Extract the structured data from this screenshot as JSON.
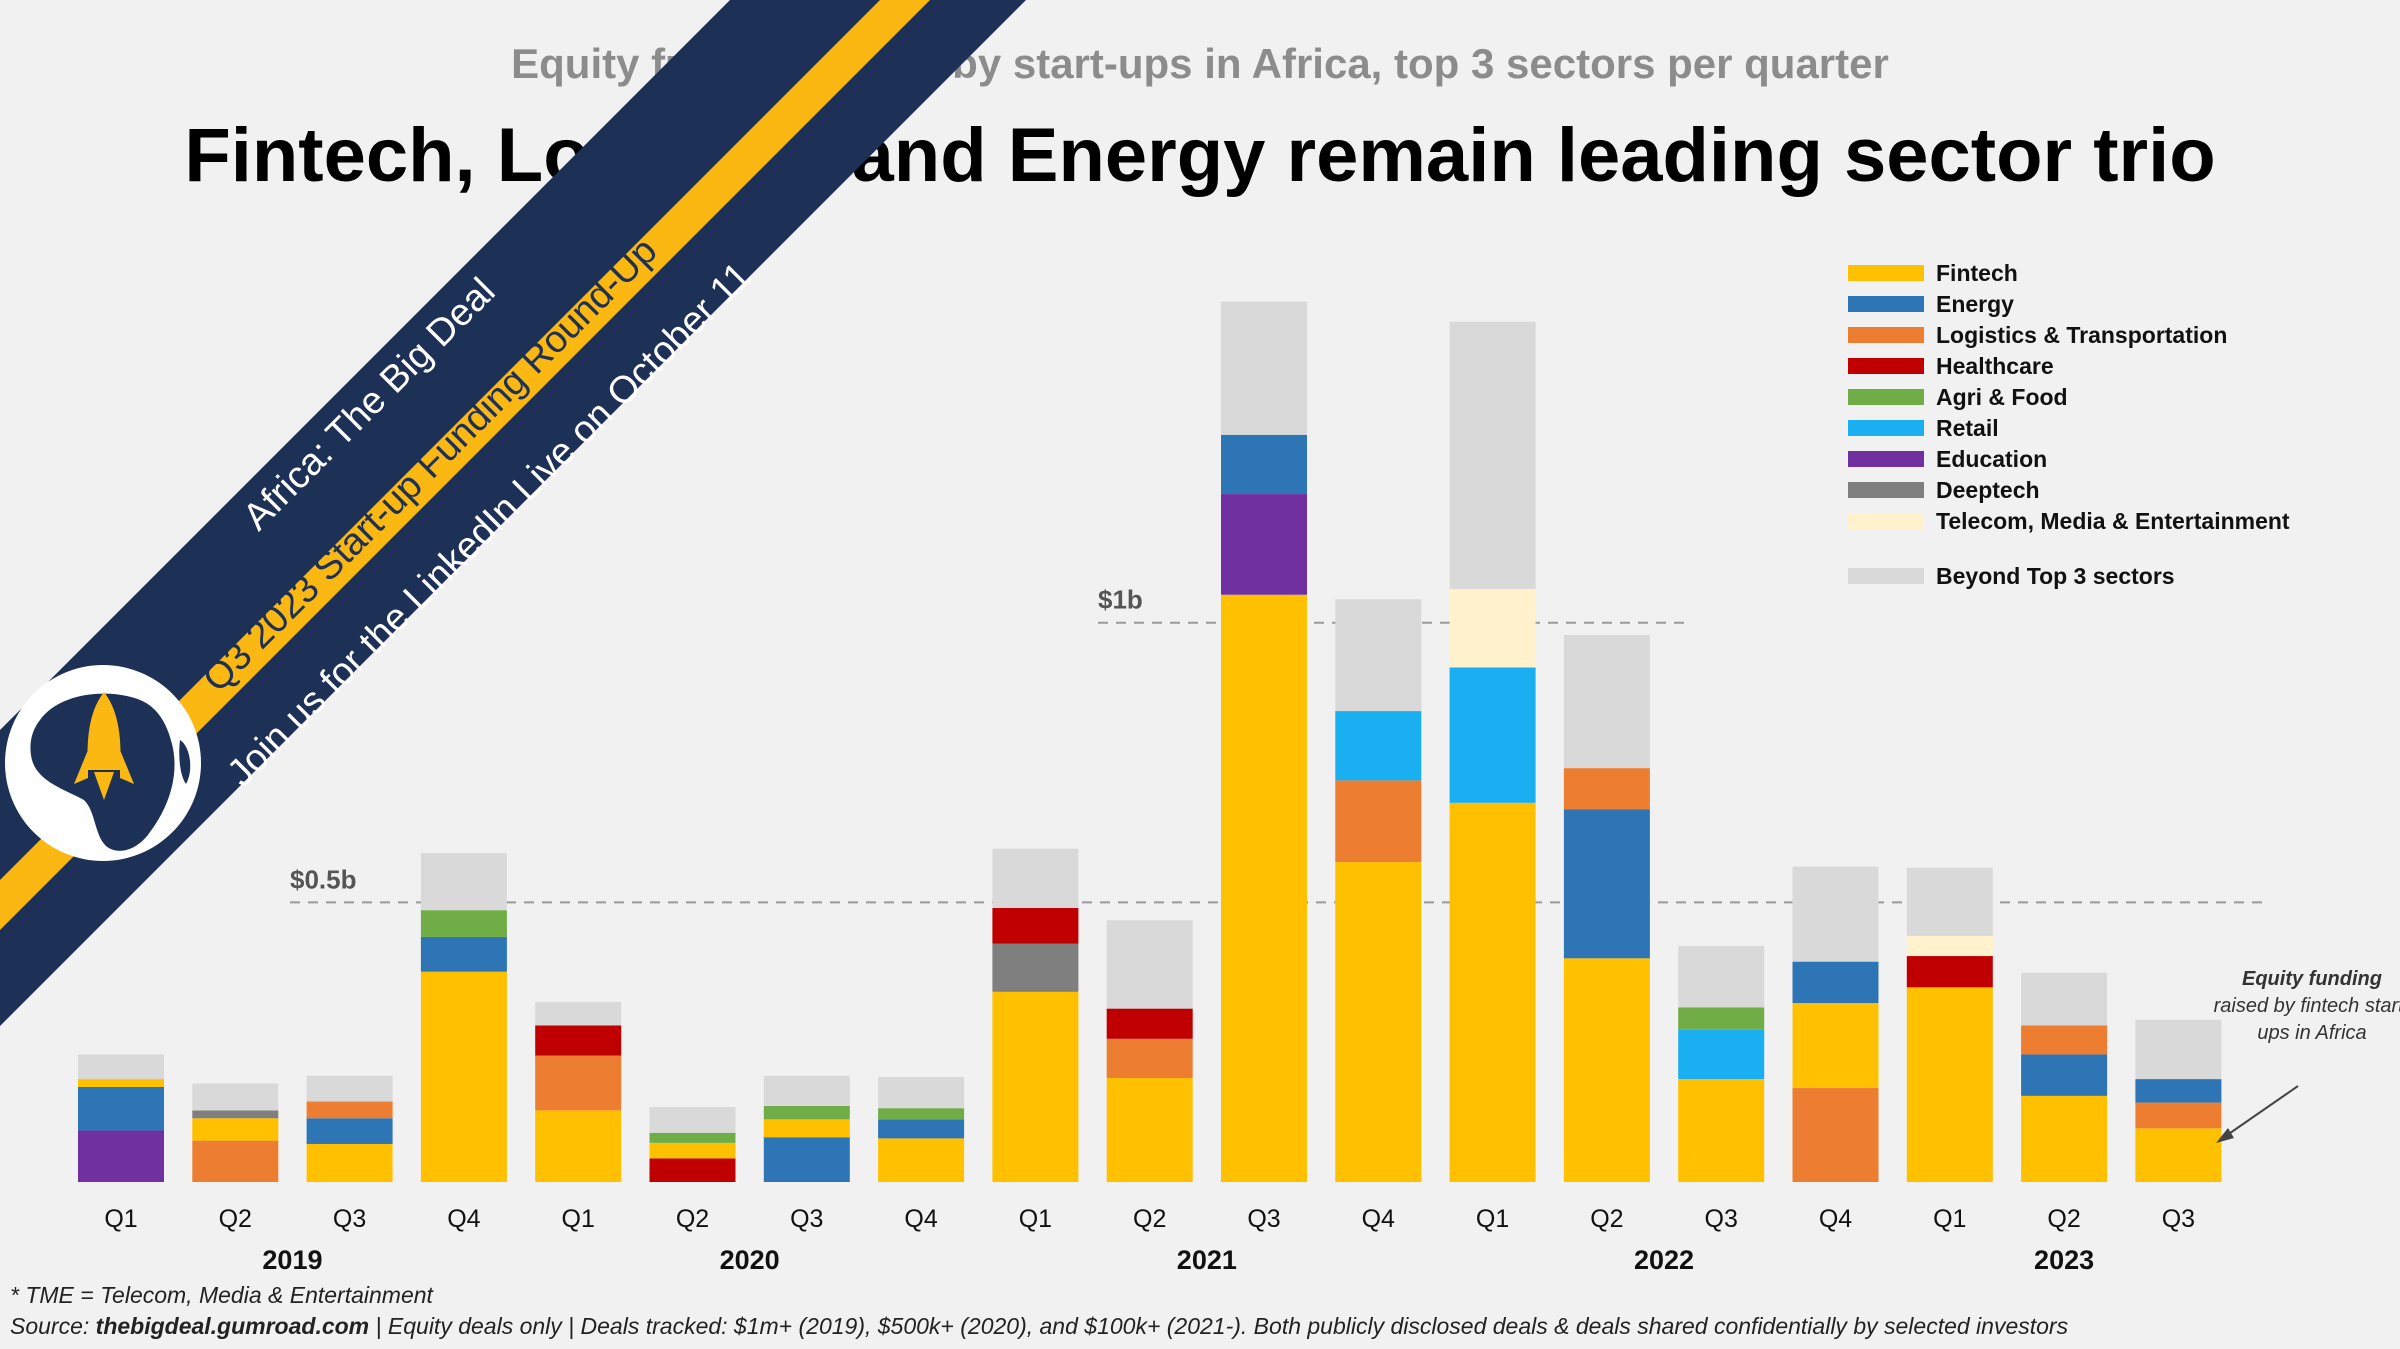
{
  "header": {
    "subtitle": "Equity funding raised by start-ups in Africa, top 3 sectors per quarter",
    "title": "Fintech, Logistics and Energy remain leading sector trio"
  },
  "banner": {
    "line1": "Africa: The Big Deal",
    "line2": "Q3 2023 Start-up Funding Round-Up",
    "line3": "Join us for the LinkedIn Live on October 11",
    "logo_icon": "africa-rocket-icon",
    "colors": {
      "navy": "#1d3157",
      "gold": "#fbb813"
    }
  },
  "annotation": {
    "bold": "Equity funding",
    "rest": "raised by fintech start-ups in Africa"
  },
  "footer": {
    "note": "* TME = Telecom, Media & Entertainment",
    "source_label": "Source: ",
    "source_site": "thebigdeal.gumroad.com",
    "source_rest": " | Equity deals only | Deals tracked:  $1m+ (2019), $500k+ (2020), and $100k+ (2021-). Both publicly disclosed deals & deals shared confidentially by selected investors"
  },
  "chart_data": {
    "type": "bar",
    "stacked": true,
    "unit": "USD million",
    "categories": [
      "Q1",
      "Q2",
      "Q3",
      "Q4",
      "Q1",
      "Q2",
      "Q3",
      "Q4",
      "Q1",
      "Q2",
      "Q3",
      "Q4",
      "Q1",
      "Q2",
      "Q3",
      "Q4",
      "Q1",
      "Q2",
      "Q3"
    ],
    "years": [
      {
        "label": "2019",
        "from": 0,
        "to": 3
      },
      {
        "label": "2020",
        "from": 4,
        "to": 7
      },
      {
        "label": "2021",
        "from": 8,
        "to": 11
      },
      {
        "label": "2022",
        "from": 12,
        "to": 15
      },
      {
        "label": "2023",
        "from": 16,
        "to": 18
      }
    ],
    "ylim": [
      0,
      1100
    ],
    "reference_lines": [
      {
        "value": 500,
        "label": "$0.5b"
      },
      {
        "value": 1000,
        "label": "$1b"
      }
    ],
    "sectors": [
      {
        "key": "fintech",
        "name": "Fintech",
        "color": "#ffc000"
      },
      {
        "key": "energy",
        "name": "Energy",
        "color": "#2e75b6"
      },
      {
        "key": "logistics",
        "name": "Logistics & Transportation",
        "color": "#ed7d31"
      },
      {
        "key": "healthcare",
        "name": "Healthcare",
        "color": "#c00000"
      },
      {
        "key": "agri",
        "name": "Agri & Food",
        "color": "#70ad47"
      },
      {
        "key": "retail",
        "name": "Retail",
        "color": "#1aaff0"
      },
      {
        "key": "education",
        "name": "Education",
        "color": "#7030a0"
      },
      {
        "key": "deeptech",
        "name": "Deeptech",
        "color": "#7f7f7f"
      },
      {
        "key": "tme",
        "name": "Telecom, Media & Entertainment",
        "color": "#fff2cc"
      },
      {
        "key": "beyond",
        "name": "Beyond Top 3 sectors",
        "color": "#d9d9d9"
      }
    ],
    "legend_gap_before": "beyond",
    "legend_position": "top-right",
    "bars": [
      [
        {
          "s": "education",
          "v": 92
        },
        {
          "s": "energy",
          "v": 78
        },
        {
          "s": "fintech",
          "v": 14
        },
        {
          "s": "beyond",
          "v": 44
        }
      ],
      [
        {
          "s": "logistics",
          "v": 74
        },
        {
          "s": "fintech",
          "v": 40
        },
        {
          "s": "deeptech",
          "v": 14
        },
        {
          "s": "beyond",
          "v": 48
        }
      ],
      [
        {
          "s": "fintech",
          "v": 68
        },
        {
          "s": "energy",
          "v": 46
        },
        {
          "s": "logistics",
          "v": 30
        },
        {
          "s": "beyond",
          "v": 46
        }
      ],
      [
        {
          "s": "fintech",
          "v": 376
        },
        {
          "s": "energy",
          "v": 62
        },
        {
          "s": "agri",
          "v": 48
        },
        {
          "s": "beyond",
          "v": 102
        }
      ],
      [
        {
          "s": "fintech",
          "v": 128
        },
        {
          "s": "logistics",
          "v": 98
        },
        {
          "s": "healthcare",
          "v": 54
        },
        {
          "s": "beyond",
          "v": 42
        }
      ],
      [
        {
          "s": "healthcare",
          "v": 42
        },
        {
          "s": "fintech",
          "v": 28
        },
        {
          "s": "agri",
          "v": 18
        },
        {
          "s": "beyond",
          "v": 46
        }
      ],
      [
        {
          "s": "energy",
          "v": 80
        },
        {
          "s": "fintech",
          "v": 32
        },
        {
          "s": "agri",
          "v": 24
        },
        {
          "s": "beyond",
          "v": 54
        }
      ],
      [
        {
          "s": "fintech",
          "v": 78
        },
        {
          "s": "energy",
          "v": 34
        },
        {
          "s": "agri",
          "v": 20
        },
        {
          "s": "beyond",
          "v": 56
        }
      ],
      [
        {
          "s": "fintech",
          "v": 340
        },
        {
          "s": "deeptech",
          "v": 86
        },
        {
          "s": "healthcare",
          "v": 64
        },
        {
          "s": "beyond",
          "v": 106
        }
      ],
      [
        {
          "s": "fintech",
          "v": 186
        },
        {
          "s": "logistics",
          "v": 70
        },
        {
          "s": "healthcare",
          "v": 54
        },
        {
          "s": "beyond",
          "v": 158
        }
      ],
      [
        {
          "s": "fintech",
          "v": 1050
        },
        {
          "s": "education",
          "v": 180
        },
        {
          "s": "energy",
          "v": 106
        },
        {
          "s": "beyond",
          "v": 238
        }
      ],
      [
        {
          "s": "fintech",
          "v": 572
        },
        {
          "s": "logistics",
          "v": 146
        },
        {
          "s": "retail",
          "v": 124
        },
        {
          "s": "beyond",
          "v": 200
        }
      ],
      [
        {
          "s": "fintech",
          "v": 678
        },
        {
          "s": "retail",
          "v": 242
        },
        {
          "s": "tme",
          "v": 140
        },
        {
          "s": "beyond",
          "v": 478
        }
      ],
      [
        {
          "s": "fintech",
          "v": 400
        },
        {
          "s": "energy",
          "v": 266
        },
        {
          "s": "logistics",
          "v": 74
        },
        {
          "s": "beyond",
          "v": 238
        }
      ],
      [
        {
          "s": "fintech",
          "v": 184
        },
        {
          "s": "retail",
          "v": 88
        },
        {
          "s": "agri",
          "v": 40
        },
        {
          "s": "beyond",
          "v": 110
        }
      ],
      [
        {
          "s": "logistics",
          "v": 168
        },
        {
          "s": "fintech",
          "v": 152
        },
        {
          "s": "energy",
          "v": 74
        },
        {
          "s": "beyond",
          "v": 170
        }
      ],
      [
        {
          "s": "fintech",
          "v": 348
        },
        {
          "s": "healthcare",
          "v": 56
        },
        {
          "s": "tme",
          "v": 36
        },
        {
          "s": "beyond",
          "v": 122
        }
      ],
      [
        {
          "s": "fintech",
          "v": 154
        },
        {
          "s": "energy",
          "v": 74
        },
        {
          "s": "logistics",
          "v": 52
        },
        {
          "s": "beyond",
          "v": 94
        }
      ],
      [
        {
          "s": "fintech",
          "v": 96
        },
        {
          "s": "logistics",
          "v": 46
        },
        {
          "s": "energy",
          "v": 42
        },
        {
          "s": "beyond",
          "v": 106
        }
      ]
    ]
  }
}
